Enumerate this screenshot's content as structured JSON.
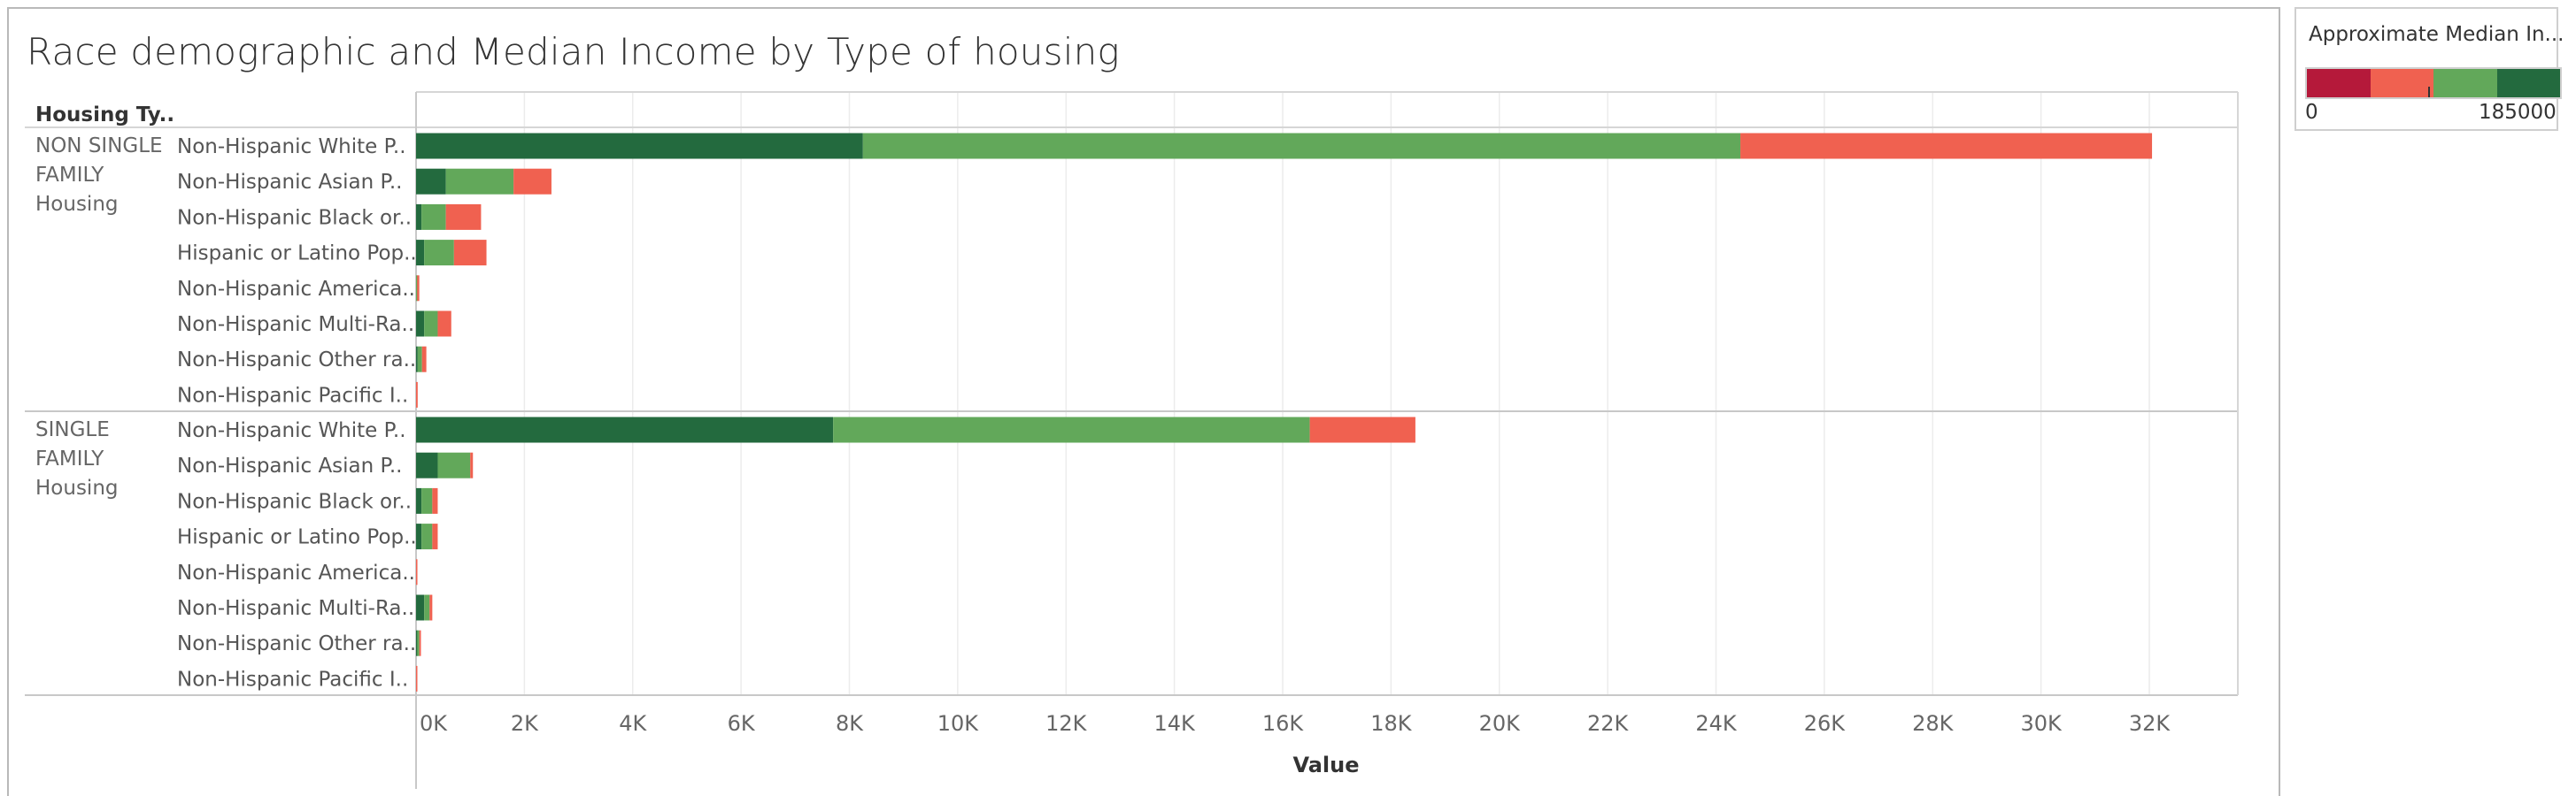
{
  "chart_data": {
    "type": "bar",
    "orientation": "horizontal",
    "stacked": true,
    "title": "Race demographic and Median Income by Type of housing",
    "row_header": "Housing Ty..",
    "xlabel": "Value",
    "xlim": [
      0,
      34000
    ],
    "x_ticks": [
      "0K",
      "2K",
      "4K",
      "6K",
      "8K",
      "10K",
      "12K",
      "14K",
      "16K",
      "18K",
      "20K",
      "22K",
      "24K",
      "26K",
      "28K",
      "30K",
      "32K"
    ],
    "x_tick_values": [
      0,
      2000,
      4000,
      6000,
      8000,
      10000,
      12000,
      14000,
      16000,
      18000,
      20000,
      22000,
      24000,
      26000,
      28000,
      30000,
      32000
    ],
    "grid": true,
    "series_colors": [
      "#236a3e",
      "#62a85a",
      "#f06150"
    ],
    "groups": [
      {
        "label_lines": [
          "NON SINGLE",
          "FAMILY",
          "Housing"
        ],
        "rows": [
          {
            "label": "Non-Hispanic White P..",
            "values": [
              8250,
              16200,
              7600
            ]
          },
          {
            "label": "Non-Hispanic  Asian P..",
            "values": [
              550,
              1250,
              700
            ]
          },
          {
            "label": "Non-Hispanic  Black or..",
            "values": [
              100,
              450,
              650
            ]
          },
          {
            "label": "Hispanic or Latino Pop..",
            "values": [
              150,
              550,
              600
            ]
          },
          {
            "label": "Non-Hispanic America..",
            "values": [
              0,
              20,
              40
            ]
          },
          {
            "label": "Non-Hispanic Multi-Ra..",
            "values": [
              150,
              250,
              250
            ]
          },
          {
            "label": "Non-Hispanic Other ra..",
            "values": [
              30,
              80,
              80
            ]
          },
          {
            "label": "Non-Hispanic Pacific I..",
            "values": [
              0,
              0,
              30
            ]
          }
        ]
      },
      {
        "label_lines": [
          "SINGLE",
          "FAMILY",
          "Housing"
        ],
        "rows": [
          {
            "label": "Non-Hispanic White P..",
            "values": [
              7700,
              8800,
              1950
            ]
          },
          {
            "label": "Non-Hispanic  Asian P..",
            "values": [
              400,
              600,
              50
            ]
          },
          {
            "label": "Non-Hispanic  Black or..",
            "values": [
              100,
              200,
              100
            ]
          },
          {
            "label": "Hispanic or Latino Pop..",
            "values": [
              100,
              200,
              100
            ]
          },
          {
            "label": "Non-Hispanic America..",
            "values": [
              0,
              0,
              25
            ]
          },
          {
            "label": "Non-Hispanic Multi-Ra..",
            "values": [
              150,
              100,
              50
            ]
          },
          {
            "label": "Non-Hispanic Other ra..",
            "values": [
              20,
              40,
              30
            ]
          },
          {
            "label": "Non-Hispanic Pacific I..",
            "values": [
              0,
              0,
              20
            ]
          }
        ]
      }
    ]
  },
  "legend": {
    "title": "Approximate Median In...",
    "min_label": "0",
    "max_label": "185000",
    "colors": [
      "#b5193a",
      "#f06150",
      "#62a85a",
      "#236a3e"
    ]
  }
}
